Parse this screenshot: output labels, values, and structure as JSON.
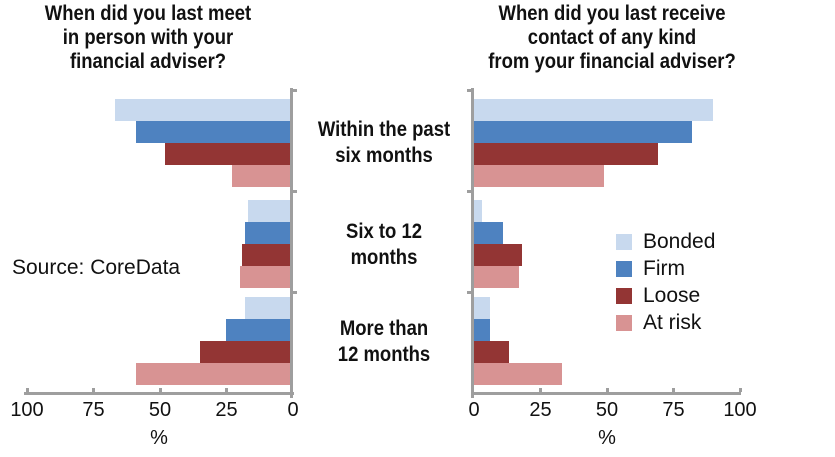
{
  "source_note": "Source: CoreData",
  "colors": {
    "axis": "#9e9e9e",
    "bonded": "#c8d9ee",
    "firm": "#4e82c0",
    "loose": "#933534",
    "at_risk": "#d89393"
  },
  "category_labels": [
    {
      "lines": [
        "Within the past",
        "six months"
      ]
    },
    {
      "lines": [
        "Six to 12",
        "months"
      ]
    },
    {
      "lines": [
        "More than",
        "12 months"
      ]
    }
  ],
  "legend": {
    "position": "right-middle",
    "items": [
      {
        "label": "Bonded",
        "color": "#c8d9ee"
      },
      {
        "label": "Firm",
        "color": "#4e82c0"
      },
      {
        "label": "Loose",
        "color": "#933534"
      },
      {
        "label": "At risk",
        "color": "#d89393"
      }
    ]
  },
  "chart_data": [
    {
      "type": "bar",
      "orientation": "horizontal",
      "axis_side": "right",
      "title": "When did you last meet in person with your financial adviser?",
      "title_lines": [
        "When did you last meet",
        "in person with your",
        "financial adviser?"
      ],
      "categories": [
        "Within the past six months",
        "Six to 12 months",
        "More than 12 months"
      ],
      "series": [
        {
          "name": "Bonded",
          "color": "#c8d9ee",
          "values": [
            67,
            17,
            18
          ]
        },
        {
          "name": "Firm",
          "color": "#4e82c0",
          "values": [
            59,
            18,
            25
          ]
        },
        {
          "name": "Loose",
          "color": "#933534",
          "values": [
            48,
            19,
            35
          ]
        },
        {
          "name": "At risk",
          "color": "#d89393",
          "values": [
            23,
            20,
            59
          ]
        }
      ],
      "xlabel": "%",
      "xlim": [
        100,
        0
      ],
      "tick_labels": [
        "100",
        "75",
        "50",
        "25",
        "0"
      ],
      "tick_values": [
        100,
        75,
        50,
        25,
        0
      ],
      "grid": false
    },
    {
      "type": "bar",
      "orientation": "horizontal",
      "axis_side": "left",
      "title": "When did you last receive contact of any kind from your financial adviser?",
      "title_lines": [
        "When did you last receive",
        "contact of any kind",
        "from your financial adviser?"
      ],
      "categories": [
        "Within the past six months",
        "Six to 12 months",
        "More than 12 months"
      ],
      "series": [
        {
          "name": "Bonded",
          "color": "#c8d9ee",
          "values": [
            90,
            3,
            6
          ]
        },
        {
          "name": "Firm",
          "color": "#4e82c0",
          "values": [
            82,
            11,
            6
          ]
        },
        {
          "name": "Loose",
          "color": "#933534",
          "values": [
            69,
            18,
            13
          ]
        },
        {
          "name": "At risk",
          "color": "#d89393",
          "values": [
            49,
            17,
            33
          ]
        }
      ],
      "xlabel": "%",
      "xlim": [
        0,
        100
      ],
      "tick_labels": [
        "0",
        "25",
        "50",
        "75",
        "100"
      ],
      "tick_values": [
        0,
        25,
        50,
        75,
        100
      ],
      "grid": false
    }
  ]
}
